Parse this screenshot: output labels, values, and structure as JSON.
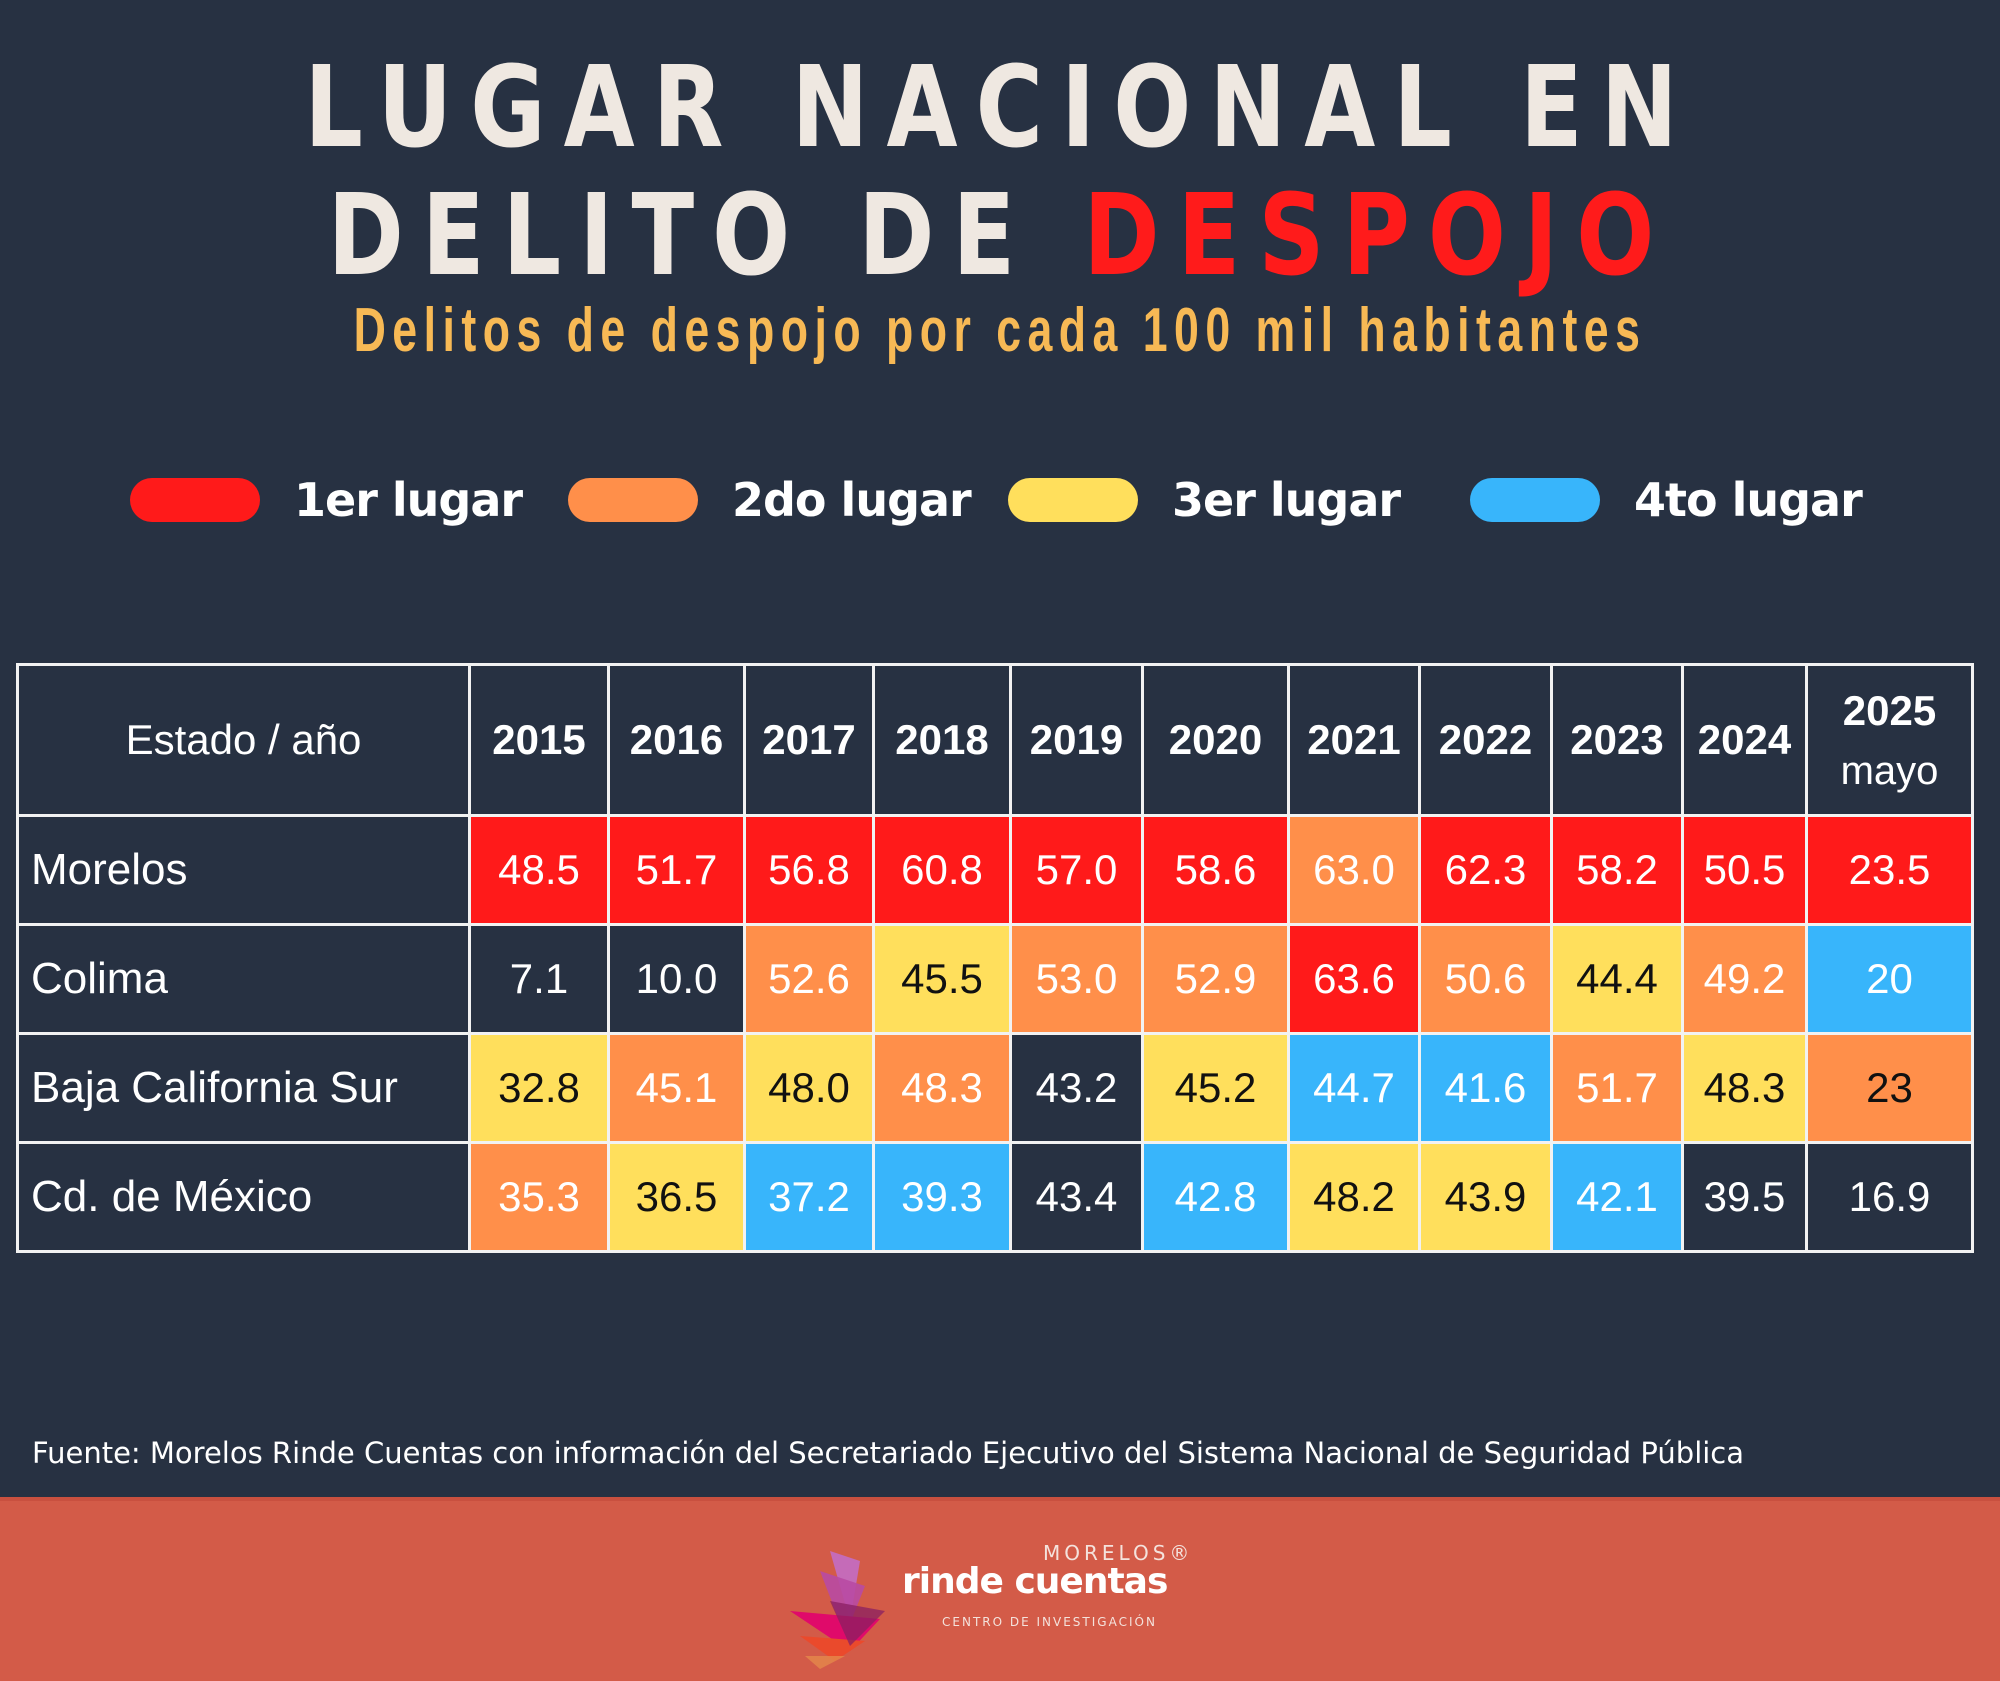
{
  "title": {
    "line1": "LUGAR NACIONAL EN",
    "line2_prefix": "DELITO DE ",
    "line2_highlight": "DESPOJO",
    "subtitle": "Delitos de despojo por cada 100 mil habitantes"
  },
  "colors": {
    "background": "#273142",
    "first": "#ff1a1a",
    "second": "#ff8f4a",
    "third": "#ffdf5c",
    "fourth": "#38b5fb",
    "none": "#273142",
    "footer": "#d35b48"
  },
  "legend": [
    {
      "label": "1er lugar",
      "rank": 1
    },
    {
      "label": "2do lugar",
      "rank": 2
    },
    {
      "label": "3er lugar",
      "rank": 3
    },
    {
      "label": "4to lugar",
      "rank": 4
    }
  ],
  "table": {
    "header_label": "Estado / año",
    "years": [
      "2015",
      "2016",
      "2017",
      "2018",
      "2019",
      "2020",
      "2021",
      "2022",
      "2023",
      "2024",
      "2025"
    ],
    "last_year_note": "mayo"
  },
  "chart_data": {
    "type": "table",
    "title": "Lugar nacional en delito de despojo",
    "subtitle": "Delitos de despojo por cada 100 mil habitantes",
    "columns": [
      "2015",
      "2016",
      "2017",
      "2018",
      "2019",
      "2020",
      "2021",
      "2022",
      "2023",
      "2024",
      "2025 mayo"
    ],
    "rows": [
      {
        "state": "Morelos",
        "values": [
          "48.5",
          "51.7",
          "56.8",
          "60.8",
          "57.0",
          "58.6",
          "63.0",
          "62.3",
          "58.2",
          "50.5",
          "23.5"
        ],
        "ranks": [
          1,
          1,
          1,
          1,
          1,
          1,
          2,
          1,
          1,
          1,
          1
        ]
      },
      {
        "state": "Colima",
        "values": [
          "7.1",
          "10.0",
          "52.6",
          "45.5",
          "53.0",
          "52.9",
          "63.6",
          "50.6",
          "44.4",
          "49.2",
          "20"
        ],
        "ranks": [
          0,
          0,
          2,
          3,
          2,
          2,
          1,
          2,
          3,
          2,
          4
        ]
      },
      {
        "state": "Baja California Sur",
        "values": [
          "32.8",
          "45.1",
          "48.0",
          "48.3",
          "43.2",
          "45.2",
          "44.7",
          "41.6",
          "51.7",
          "48.3",
          "23"
        ],
        "ranks": [
          3,
          2,
          3,
          2,
          0,
          3,
          4,
          4,
          2,
          3,
          2
        ]
      },
      {
        "state": "Cd. de México",
        "values": [
          "35.3",
          "36.5",
          "37.2",
          "39.3",
          "43.4",
          "42.8",
          "48.2",
          "43.9",
          "42.1",
          "39.5",
          "16.9"
        ],
        "ranks": [
          2,
          3,
          4,
          4,
          0,
          4,
          3,
          3,
          4,
          0,
          0
        ]
      }
    ],
    "legend": [
      "1er lugar",
      "2do lugar",
      "3er lugar",
      "4to lugar"
    ]
  },
  "source": "Fuente: Morelos Rinde Cuentas con información del Secretariado Ejecutivo del Sistema Nacional de Seguridad Pública",
  "logo": {
    "top": "MORELOS®",
    "main": "rinde cuentas",
    "sub": "CENTRO DE INVESTIGACIÓN"
  }
}
